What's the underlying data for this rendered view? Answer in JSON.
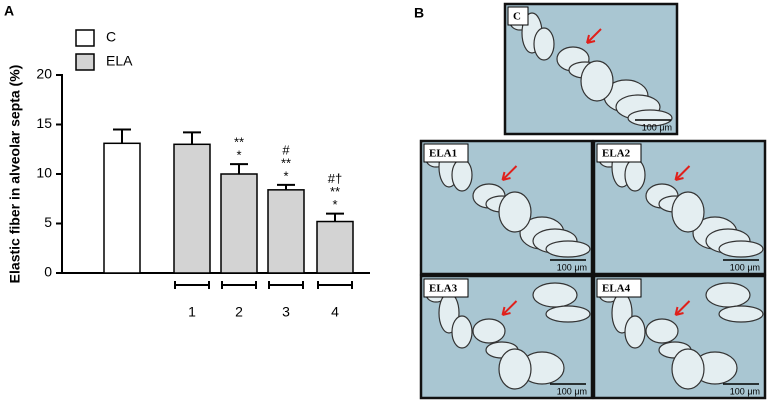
{
  "panel_a": "A",
  "panel_b": "B",
  "chart_data": {
    "type": "bar",
    "y_label": "Elastic fiber in alveolar septa (%)",
    "categories": [
      null,
      "1",
      "2",
      "3",
      "4"
    ],
    "series": [
      {
        "name": "C",
        "color": "#ffffff",
        "values": [
          13.1,
          null,
          null,
          null,
          null
        ],
        "errors": [
          1.4,
          null,
          null,
          null,
          null
        ]
      },
      {
        "name": "ELA",
        "color": "#d3d3d3",
        "values": [
          null,
          13.0,
          10.0,
          8.4,
          5.2
        ],
        "errors": [
          null,
          1.2,
          1.0,
          0.5,
          0.8
        ]
      }
    ],
    "significance": [
      null,
      null,
      [
        "**",
        "*"
      ],
      [
        "#",
        "**",
        "*"
      ],
      [
        "#†",
        "**",
        "*"
      ]
    ],
    "ylim": [
      0,
      20
    ],
    "yticks": [
      0,
      5,
      10,
      15,
      20
    ]
  },
  "images": [
    {
      "label": "C",
      "scale": "100 μm"
    },
    {
      "label": "ELA1",
      "scale": "100 μm"
    },
    {
      "label": "ELA2",
      "scale": "100 μm"
    },
    {
      "label": "ELA3",
      "scale": "100 μm"
    },
    {
      "label": "ELA4",
      "scale": "100 μm"
    }
  ]
}
